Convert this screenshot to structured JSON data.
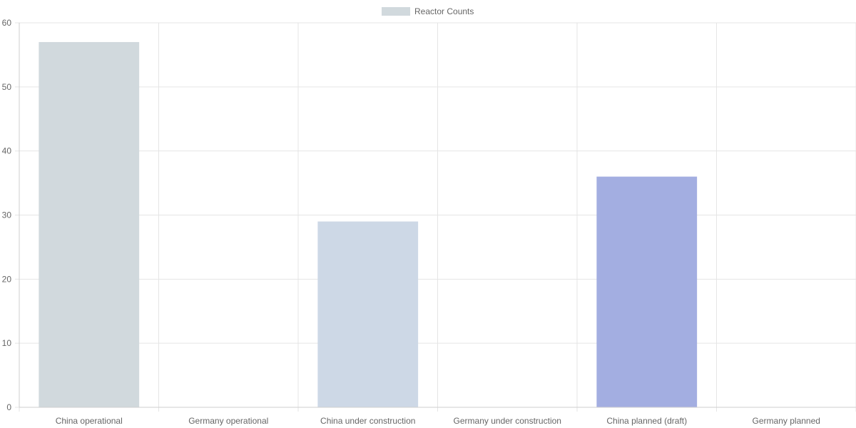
{
  "chart_data": {
    "type": "bar",
    "categories": [
      "China operational",
      "Germany operational",
      "China under construction",
      "Germany under construction",
      "China planned (draft)",
      "Germany planned"
    ],
    "series": [
      {
        "name": "Reactor Counts",
        "values": [
          57,
          0,
          29,
          0,
          36,
          0
        ],
        "colors": [
          "#d1d9dd",
          "#d1d9dd",
          "#cdd8e6",
          "#cdd8e6",
          "#a3aee1",
          "#a3aee1"
        ]
      }
    ],
    "legend": {
      "label": "Reactor Counts",
      "position": "top-center",
      "swatch_color": "#d1d9dd"
    },
    "ylim": [
      0,
      60
    ],
    "yticks": [
      0,
      10,
      20,
      30,
      40,
      50,
      60
    ],
    "grid": true,
    "colors": {
      "grid": "#e5e5e5",
      "axis": "#cfcfcf",
      "tick_text": "#666666"
    }
  }
}
